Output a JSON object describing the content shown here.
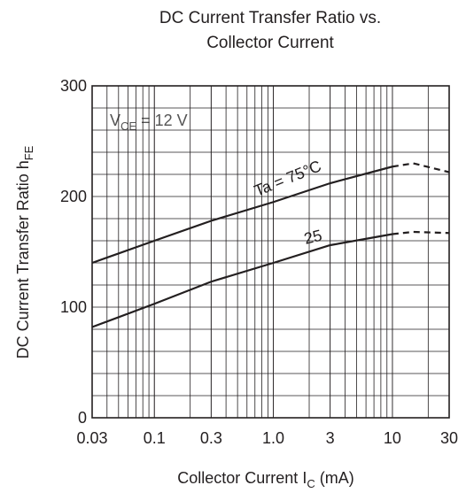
{
  "chart_data": {
    "type": "line",
    "title": [
      "DC Current Transfer Ratio vs.",
      "Collector Current"
    ],
    "x_label": "Collector Current  I",
    "x_label_sub": "C",
    "x_label_unit": "  (mA)",
    "y_label": "DC Current Transfer Ratio  h",
    "y_label_sub": "FE",
    "annotation": "V",
    "annotation_sub": "CE",
    "annotation_rest": " = 12 V",
    "x": [
      0.03,
      0.1,
      0.3,
      1,
      3,
      10,
      15,
      30
    ],
    "series": [
      {
        "name": "Ta = 75°C",
        "color": "#231f20",
        "values": [
          140,
          160,
          178,
          195,
          212,
          227,
          null,
          null
        ]
      },
      {
        "color": "#231f20",
        "dashed": true,
        "values": [
          null,
          null,
          null,
          null,
          null,
          227,
          230,
          222
        ]
      },
      {
        "name": "25",
        "color": "#231f20",
        "values": [
          82,
          103,
          123,
          140,
          156,
          166,
          null,
          null
        ]
      },
      {
        "color": "#231f20",
        "dashed": true,
        "values": [
          null,
          null,
          null,
          null,
          null,
          166,
          168,
          167
        ]
      }
    ],
    "xscale": "log",
    "xlim": [
      0.03,
      30
    ],
    "xticks": [
      0.03,
      0.1,
      0.3,
      {
        "value": 1,
        "label": "1.0"
      },
      3,
      10,
      30
    ],
    "ylim": [
      0,
      300
    ],
    "yticks": [
      0,
      100,
      200,
      300
    ],
    "grid": true
  }
}
